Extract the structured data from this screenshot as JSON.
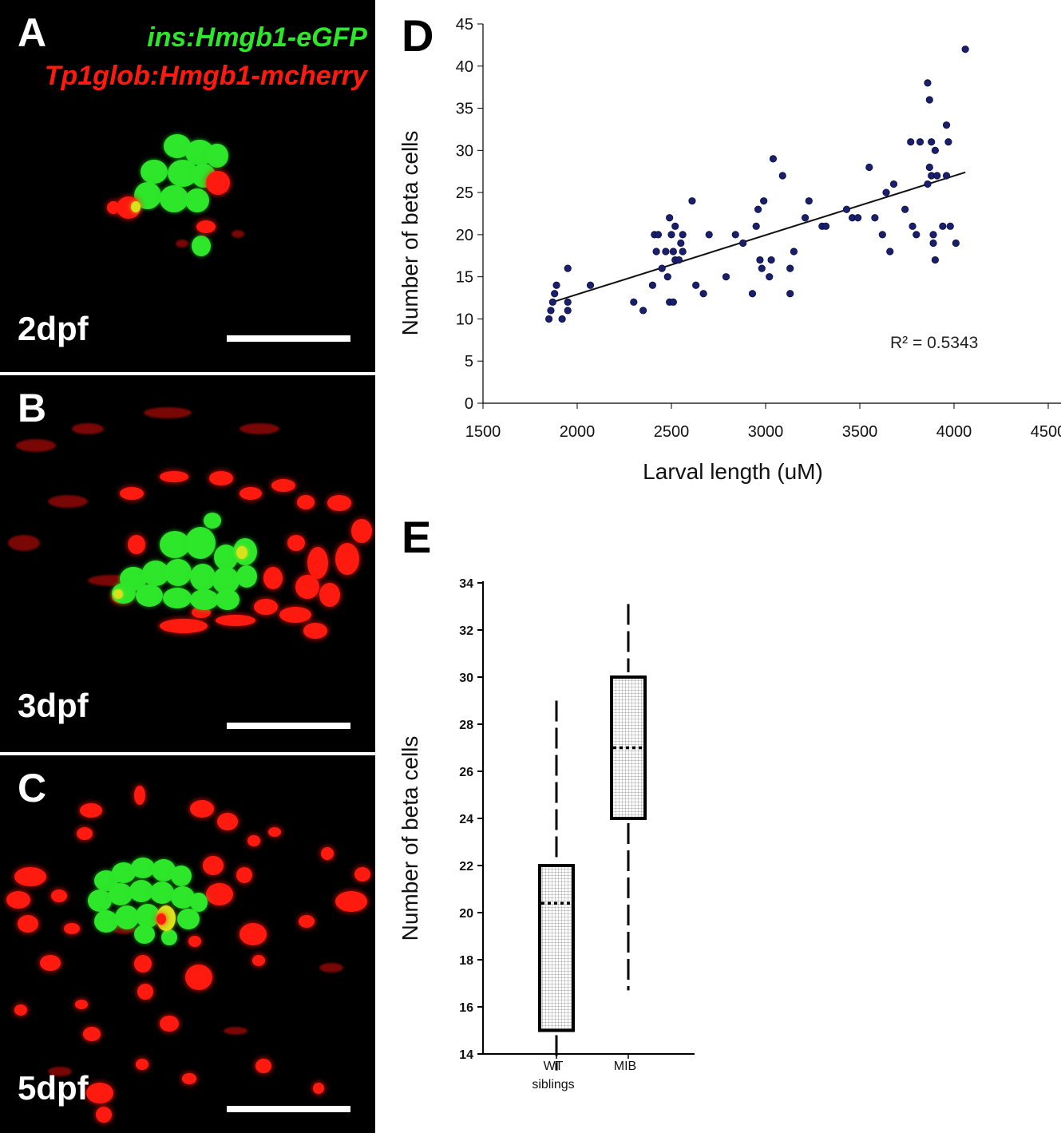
{
  "panels": {
    "A": {
      "letter": "A",
      "stage": "2dpf",
      "legend_green": "ins:Hmgb1-eGFP",
      "legend_red": "Tp1glob:Hmgb1-mcherry"
    },
    "B": {
      "letter": "B",
      "stage": "3dpf"
    },
    "C": {
      "letter": "C",
      "stage": "5dpf"
    },
    "D": {
      "letter": "D"
    },
    "E": {
      "letter": "E"
    }
  },
  "colors": {
    "green": "#2ee62a",
    "red": "#ff1a10",
    "points": "#1a1f6b",
    "background": "#000000"
  },
  "chart_data": [
    {
      "type": "scatter",
      "panel": "D",
      "xlabel": "Larval length (uM)",
      "ylabel": "Number of beta cells",
      "xlim": [
        1500,
        4500
      ],
      "ylim": [
        0,
        45
      ],
      "xticks": [
        1500,
        2000,
        2500,
        3000,
        3500,
        4000,
        4500
      ],
      "yticks": [
        0,
        5,
        10,
        15,
        20,
        25,
        30,
        35,
        40,
        45
      ],
      "annotation": "R² = 0.5343",
      "trendline": {
        "x": [
          1870,
          4060
        ],
        "y": [
          12,
          27.4
        ]
      },
      "points": [
        [
          1850,
          10
        ],
        [
          1860,
          11
        ],
        [
          1870,
          12
        ],
        [
          1880,
          13
        ],
        [
          1890,
          14
        ],
        [
          1920,
          10
        ],
        [
          1950,
          11
        ],
        [
          1950,
          12
        ],
        [
          1950,
          16
        ],
        [
          2070,
          14
        ],
        [
          2300,
          12
        ],
        [
          2350,
          11
        ],
        [
          2400,
          14
        ],
        [
          2410,
          20
        ],
        [
          2420,
          18
        ],
        [
          2430,
          20
        ],
        [
          2450,
          16
        ],
        [
          2470,
          18
        ],
        [
          2480,
          15
        ],
        [
          2490,
          12
        ],
        [
          2490,
          22
        ],
        [
          2500,
          20
        ],
        [
          2510,
          18
        ],
        [
          2510,
          12
        ],
        [
          2520,
          17
        ],
        [
          2520,
          21
        ],
        [
          2540,
          17
        ],
        [
          2550,
          19
        ],
        [
          2560,
          18
        ],
        [
          2560,
          20
        ],
        [
          2610,
          24
        ],
        [
          2630,
          14
        ],
        [
          2670,
          13
        ],
        [
          2700,
          20
        ],
        [
          2790,
          15
        ],
        [
          2840,
          20
        ],
        [
          2880,
          19
        ],
        [
          2930,
          13
        ],
        [
          2950,
          21
        ],
        [
          2960,
          23
        ],
        [
          2970,
          17
        ],
        [
          2980,
          16
        ],
        [
          2990,
          24
        ],
        [
          3020,
          15
        ],
        [
          3030,
          17
        ],
        [
          3040,
          29
        ],
        [
          3090,
          27
        ],
        [
          3130,
          13
        ],
        [
          3130,
          16
        ],
        [
          3150,
          18
        ],
        [
          3210,
          22
        ],
        [
          3230,
          24
        ],
        [
          3300,
          21
        ],
        [
          3320,
          21
        ],
        [
          3430,
          23
        ],
        [
          3460,
          22
        ],
        [
          3490,
          22
        ],
        [
          3550,
          28
        ],
        [
          3580,
          22
        ],
        [
          3620,
          20
        ],
        [
          3640,
          25
        ],
        [
          3660,
          18
        ],
        [
          3680,
          26
        ],
        [
          3740,
          23
        ],
        [
          3770,
          31
        ],
        [
          3780,
          21
        ],
        [
          3800,
          20
        ],
        [
          3820,
          31
        ],
        [
          3860,
          26
        ],
        [
          3860,
          38
        ],
        [
          3870,
          28
        ],
        [
          3870,
          36
        ],
        [
          3880,
          27
        ],
        [
          3880,
          31
        ],
        [
          3890,
          19
        ],
        [
          3890,
          20
        ],
        [
          3900,
          17
        ],
        [
          3900,
          30
        ],
        [
          3910,
          27
        ],
        [
          3940,
          21
        ],
        [
          3960,
          33
        ],
        [
          3960,
          27
        ],
        [
          3970,
          31
        ],
        [
          3980,
          21
        ],
        [
          4010,
          19
        ],
        [
          4060,
          42
        ]
      ]
    },
    {
      "type": "box",
      "panel": "E",
      "ylabel": "Number of beta cells",
      "ylim": [
        14,
        34
      ],
      "yticks": [
        14,
        16,
        18,
        20,
        22,
        24,
        26,
        28,
        30,
        32,
        34
      ],
      "categories": [
        "WT\nsiblings",
        "MIB"
      ],
      "boxes": [
        {
          "label_line1": "WT",
          "label_line2": "siblings",
          "min": 13.3,
          "q1": 15,
          "median": 20.4,
          "q3": 22,
          "max": 29
        },
        {
          "label_line1": "MIB",
          "label_line2": "",
          "min": 16.7,
          "q1": 24,
          "median": 27,
          "q3": 30,
          "max": 33.1
        }
      ]
    }
  ]
}
